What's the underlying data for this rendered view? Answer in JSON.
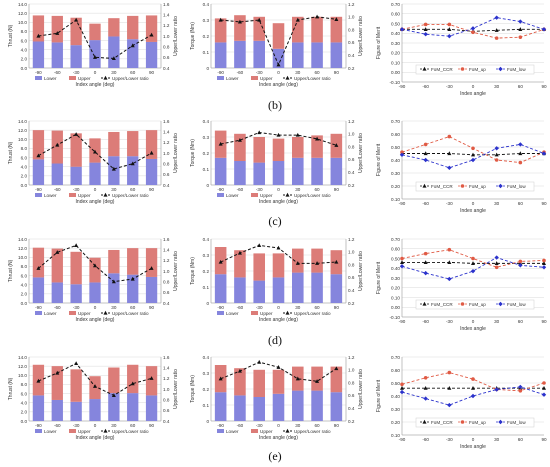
{
  "figure": {
    "row_labels": [
      "(b)",
      "(c)",
      "(d)",
      "(e)"
    ],
    "colors": {
      "lower": "#8585dd",
      "upper": "#dc7c78",
      "ratio": "#111111",
      "fom_ccr": "#111111",
      "fom_up": "#e05a44",
      "fom_low": "#2b32cc",
      "grid": "#d9d9d9",
      "axis": "#9a9a9a"
    }
  },
  "chart_data": [
    {
      "type": "bar",
      "stacked": true,
      "row": "(b)",
      "xlabel": "Index angle (deg)",
      "ylabel": "Thrust (N)",
      "y2label": "Upper/Lower ratio",
      "categories": [
        "-90",
        "-60",
        "-30",
        "0",
        "30",
        "60",
        "90"
      ],
      "ylim": [
        0,
        14
      ],
      "yticks": [
        "0.0",
        "2.0",
        "4.0",
        "6.0",
        "8.0",
        "10.0",
        "12.0",
        "14.0"
      ],
      "y2lim": [
        0.4,
        1.6
      ],
      "y2ticks": [
        "0.4",
        "0.6",
        "0.8",
        "1.0",
        "1.2",
        "1.4",
        "1.6"
      ],
      "series": [
        {
          "name": "Lower",
          "values": [
            5.8,
            5.6,
            5.0,
            6.1,
            6.9,
            6.3,
            5.7
          ]
        },
        {
          "name": "Upper",
          "values": [
            5.7,
            5.8,
            6.0,
            3.6,
            4.0,
            5.1,
            5.8
          ]
        }
      ],
      "line": {
        "name": "Upper/Lower ratio",
        "values": [
          1.0,
          1.05,
          1.3,
          0.6,
          0.58,
          0.82,
          1.02
        ]
      },
      "legend": [
        "Lower",
        "Upper",
        "Upper/Lower ratio"
      ],
      "legend_position": "bottom",
      "grid": true
    },
    {
      "type": "bar",
      "stacked": true,
      "row": "(b)",
      "xlabel": "Index angle (deg)",
      "ylabel": "Torque (Nm)",
      "y2label": "Upper/Lower ratio",
      "categories": [
        "-90",
        "-60",
        "-30",
        "0",
        "30",
        "60",
        "90"
      ],
      "ylim": [
        0,
        0.4
      ],
      "yticks": [
        "0",
        "0.1",
        "0.2",
        "0.3",
        "0.4"
      ],
      "y2lim": [
        0.2,
        1.2
      ],
      "y2ticks": [
        "0.2",
        "0.4",
        "0.6",
        "0.8",
        "1.0",
        "1.2"
      ],
      "series": [
        {
          "name": "Lower",
          "values": [
            0.16,
            0.17,
            0.17,
            0.12,
            0.16,
            0.16,
            0.16
          ]
        },
        {
          "name": "Upper",
          "values": [
            0.15,
            0.16,
            0.15,
            0.16,
            0.16,
            0.16,
            0.16
          ]
        }
      ],
      "line": {
        "name": "Upper/Lower ratio",
        "values": [
          0.95,
          0.92,
          0.95,
          0.25,
          0.95,
          1.0,
          0.96
        ]
      },
      "legend": [
        "Lower",
        "Upper",
        "Upper/Lower ratio"
      ],
      "legend_position": "bottom",
      "grid": true
    },
    {
      "type": "line",
      "row": "(b)",
      "xlabel": "Index angle",
      "ylabel": "Figure of Merit",
      "x": [
        "-90",
        "-60",
        "-30",
        "0",
        "30",
        "60",
        "90"
      ],
      "ylim": [
        -0.1,
        0.7
      ],
      "yticks": [
        "-0.10",
        "0.00",
        "0.10",
        "0.20",
        "0.30",
        "0.40",
        "0.50",
        "0.60",
        "0.70"
      ],
      "series": [
        {
          "name": "FoM_CCR",
          "values": [
            0.44,
            0.44,
            0.44,
            0.42,
            0.43,
            0.44,
            0.44
          ]
        },
        {
          "name": "FoM_up",
          "values": [
            0.44,
            0.49,
            0.49,
            0.41,
            0.35,
            0.36,
            0.44
          ]
        },
        {
          "name": "FoM_low",
          "values": [
            0.44,
            0.39,
            0.37,
            0.45,
            0.56,
            0.52,
            0.44
          ]
        }
      ],
      "legend_position": "bottom",
      "grid": true
    },
    {
      "type": "bar",
      "stacked": true,
      "row": "(c)",
      "xlabel": "Index angle (deg)",
      "ylabel": "Thrust (N)",
      "y2label": "Upper/Lower ratio",
      "categories": [
        "-90",
        "-60",
        "-30",
        "0",
        "30",
        "60",
        "90"
      ],
      "ylim": [
        0,
        14
      ],
      "yticks": [
        "0.0",
        "2.0",
        "4.0",
        "6.0",
        "8.0",
        "10.0",
        "12.0",
        "14.0"
      ],
      "y2lim": [
        0.4,
        1.6
      ],
      "y2ticks": [
        "0.4",
        "0.6",
        "0.8",
        "1.0",
        "1.2",
        "1.4",
        "1.6"
      ],
      "series": [
        {
          "name": "Lower",
          "values": [
            5.6,
            4.7,
            4.0,
            4.9,
            6.3,
            6.3,
            5.7
          ]
        },
        {
          "name": "Upper",
          "values": [
            6.4,
            7.2,
            7.3,
            5.3,
            5.3,
            5.5,
            6.3
          ]
        }
      ],
      "line": {
        "name": "Upper/Lower ratio",
        "values": [
          0.95,
          1.15,
          1.35,
          1.02,
          0.7,
          0.8,
          1.0
        ]
      },
      "legend": [
        "Lower",
        "Upper",
        "Upper/Lower ratio"
      ],
      "legend_position": "bottom",
      "grid": true
    },
    {
      "type": "bar",
      "stacked": true,
      "row": "(c)",
      "xlabel": "Index angle (deg)",
      "ylabel": "Torque (Nm)",
      "y2label": "Upper/Lower ratio",
      "categories": [
        "-90",
        "-60",
        "-30",
        "0",
        "30",
        "60",
        "90"
      ],
      "ylim": [
        0,
        0.4
      ],
      "yticks": [
        "0",
        "0.1",
        "0.2",
        "0.3",
        "0.4"
      ],
      "y2lim": [
        0.2,
        1.2
      ],
      "y2ticks": [
        "0.2",
        "0.4",
        "0.6",
        "0.8",
        "1.0",
        "1.2"
      ],
      "series": [
        {
          "name": "Lower",
          "values": [
            0.17,
            0.15,
            0.14,
            0.15,
            0.17,
            0.17,
            0.17
          ]
        },
        {
          "name": "Upper",
          "values": [
            0.17,
            0.17,
            0.16,
            0.14,
            0.13,
            0.14,
            0.15
          ]
        }
      ],
      "line": {
        "name": "Upper/Lower ratio",
        "values": [
          0.84,
          0.9,
          1.02,
          0.98,
          0.98,
          0.92,
          0.82
        ]
      },
      "legend": [
        "Lower",
        "Upper",
        "Upper/Lower ratio"
      ],
      "legend_position": "bottom",
      "grid": true
    },
    {
      "type": "line",
      "row": "(c)",
      "xlabel": "Index angle",
      "ylabel": "Figure of Merit",
      "x": [
        "-90",
        "-60",
        "-30",
        "0",
        "30",
        "60",
        "90"
      ],
      "ylim": [
        0.1,
        0.7
      ],
      "yticks": [
        "0.10",
        "0.20",
        "0.30",
        "0.40",
        "0.50",
        "0.60",
        "0.70"
      ],
      "series": [
        {
          "name": "FoM_CCR",
          "values": [
            0.45,
            0.45,
            0.45,
            0.44,
            0.44,
            0.45,
            0.45
          ]
        },
        {
          "name": "FoM_up",
          "values": [
            0.46,
            0.52,
            0.58,
            0.49,
            0.4,
            0.38,
            0.46
          ]
        },
        {
          "name": "FoM_low",
          "values": [
            0.44,
            0.4,
            0.34,
            0.4,
            0.49,
            0.52,
            0.45
          ]
        }
      ],
      "legend_position": "bottom",
      "grid": true
    },
    {
      "type": "bar",
      "stacked": true,
      "row": "(d)",
      "xlabel": "Index angle (deg)",
      "ylabel": "Thrust (N)",
      "y2label": "Upper/Lower ratio",
      "categories": [
        "-90",
        "-60",
        "-30",
        "0",
        "30",
        "60",
        "90"
      ],
      "ylim": [
        0,
        14
      ],
      "yticks": [
        "0.0",
        "2.0",
        "4.0",
        "6.0",
        "8.0",
        "10.0",
        "12.0",
        "14.0"
      ],
      "y2lim": [
        0.4,
        1.6
      ],
      "y2ticks": [
        "0.4",
        "0.6",
        "0.8",
        "1.0",
        "1.2",
        "1.4",
        "1.6"
      ],
      "series": [
        {
          "name": "Lower",
          "values": [
            5.6,
            4.5,
            4.1,
            4.5,
            6.5,
            6.2,
            5.7
          ]
        },
        {
          "name": "Upper",
          "values": [
            6.5,
            7.4,
            7.1,
            5.4,
            5.1,
            5.8,
            6.3
          ]
        }
      ],
      "line": {
        "name": "Upper/Lower ratio",
        "values": [
          1.05,
          1.35,
          1.48,
          1.1,
          0.8,
          0.85,
          1.05
        ]
      },
      "legend": [
        "Lower",
        "Upper",
        "Upper/Lower ratio"
      ],
      "legend_position": "bottom",
      "grid": true
    },
    {
      "type": "bar",
      "stacked": true,
      "row": "(d)",
      "xlabel": "Index angle (deg)",
      "ylabel": "Torque (Nm)",
      "y2label": "Upper/Lower ratio",
      "categories": [
        "-90",
        "-60",
        "-30",
        "0",
        "30",
        "60",
        "90"
      ],
      "ylim": [
        0,
        0.4
      ],
      "yticks": [
        "0",
        "0.1",
        "0.2",
        "0.3",
        "0.4"
      ],
      "y2lim": [
        0.2,
        1.2
      ],
      "y2ticks": [
        "0.2",
        "0.4",
        "0.6",
        "0.8",
        "1.0",
        "1.2"
      ],
      "series": [
        {
          "name": "Lower",
          "values": [
            0.18,
            0.16,
            0.14,
            0.16,
            0.19,
            0.19,
            0.18
          ]
        },
        {
          "name": "Upper",
          "values": [
            0.17,
            0.17,
            0.17,
            0.15,
            0.15,
            0.15,
            0.15
          ]
        }
      ],
      "line": {
        "name": "Upper/Lower ratio",
        "values": [
          0.84,
          0.98,
          1.1,
          1.06,
          0.82,
          0.82,
          0.84
        ]
      },
      "legend": [
        "Lower",
        "Upper",
        "Upper/Lower ratio"
      ],
      "legend_position": "bottom",
      "grid": true
    },
    {
      "type": "line",
      "row": "(d)",
      "xlabel": "Index angle",
      "ylabel": "Figure of Merit",
      "x": [
        "-90",
        "-60",
        "-30",
        "0",
        "30",
        "60",
        "90"
      ],
      "ylim": [
        -0.1,
        0.7
      ],
      "yticks": [
        "-0.10",
        "0.00",
        "0.10",
        "0.20",
        "0.30",
        "0.40",
        "0.50",
        "0.60",
        "0.70"
      ],
      "series": [
        {
          "name": "FoM_CCR",
          "values": [
            0.46,
            0.46,
            0.46,
            0.45,
            0.45,
            0.45,
            0.45
          ]
        },
        {
          "name": "FoM_up",
          "values": [
            0.5,
            0.55,
            0.59,
            0.5,
            0.41,
            0.47,
            0.48
          ]
        },
        {
          "name": "FoM_low",
          "values": [
            0.42,
            0.35,
            0.29,
            0.37,
            0.51,
            0.43,
            0.41
          ]
        }
      ],
      "legend_position": "bottom",
      "grid": true
    },
    {
      "type": "bar",
      "stacked": true,
      "row": "(e)",
      "xlabel": "Index angle (deg)",
      "ylabel": "Thrust (N)",
      "y2label": "Upper/Lower ratio",
      "categories": [
        "-90",
        "-60",
        "-30",
        "0",
        "30",
        "60",
        "90"
      ],
      "ylim": [
        0,
        14
      ],
      "yticks": [
        "0.0",
        "2.0",
        "4.0",
        "6.0",
        "8.0",
        "10.0",
        "12.0",
        "14.0"
      ],
      "y2lim": [
        0.4,
        1.6
      ],
      "y2ticks": [
        "0.4",
        "0.6",
        "0.8",
        "1.0",
        "1.2",
        "1.4",
        "1.6"
      ],
      "series": [
        {
          "name": "Lower",
          "values": [
            5.6,
            4.6,
            4.2,
            4.8,
            6.1,
            6.1,
            5.6
          ]
        },
        {
          "name": "Upper",
          "values": [
            6.7,
            7.4,
            7.1,
            5.0,
            5.6,
            6.2,
            6.4
          ]
        }
      ],
      "line": {
        "name": "Upper/Lower ratio",
        "values": [
          1.15,
          1.3,
          1.48,
          1.05,
          0.88,
          1.1,
          1.2
        ]
      },
      "legend": [
        "Lower",
        "Upper",
        "Upper/Lower ratio"
      ],
      "legend_position": "bottom",
      "grid": true
    },
    {
      "type": "bar",
      "stacked": true,
      "row": "(e)",
      "xlabel": "Index angle (deg)",
      "ylabel": "Torque (Nm)",
      "y2label": "Upper/Lower ratio",
      "categories": [
        "-90",
        "-60",
        "-30",
        "0",
        "30",
        "60",
        "90"
      ],
      "ylim": [
        0,
        0.4
      ],
      "yticks": [
        "0",
        "0.1",
        "0.2",
        "0.3",
        "0.4"
      ],
      "y2lim": [
        0.2,
        1.2
      ],
      "y2ticks": [
        "0.2",
        "0.4",
        "0.6",
        "0.8",
        "1.0",
        "1.2"
      ],
      "series": [
        {
          "name": "Lower",
          "values": [
            0.18,
            0.16,
            0.15,
            0.17,
            0.19,
            0.19,
            0.18
          ]
        },
        {
          "name": "Upper",
          "values": [
            0.17,
            0.17,
            0.17,
            0.15,
            0.15,
            0.15,
            0.16
          ]
        }
      ],
      "line": {
        "name": "Upper/Lower ratio",
        "values": [
          0.86,
          0.98,
          1.12,
          1.04,
          0.86,
          0.82,
          1.02
        ]
      },
      "legend": [
        "Lower",
        "Upper",
        "Upper/Lower ratio"
      ],
      "legend_position": "bottom",
      "grid": true
    },
    {
      "type": "line",
      "row": "(e)",
      "xlabel": "Index angle",
      "ylabel": "Figure of Merit",
      "x": [
        "-90",
        "-60",
        "-30",
        "0",
        "30",
        "60",
        "90"
      ],
      "ylim": [
        0.1,
        0.7
      ],
      "yticks": [
        "0.10",
        "0.20",
        "0.30",
        "0.40",
        "0.50",
        "0.60",
        "0.70"
      ],
      "series": [
        {
          "name": "FoM_CCR",
          "values": [
            0.46,
            0.46,
            0.46,
            0.46,
            0.46,
            0.46,
            0.46
          ]
        },
        {
          "name": "FoM_up",
          "values": [
            0.49,
            0.54,
            0.58,
            0.53,
            0.45,
            0.44,
            0.5
          ]
        },
        {
          "name": "FoM_low",
          "values": [
            0.43,
            0.38,
            0.33,
            0.4,
            0.45,
            0.47,
            0.41
          ]
        }
      ],
      "legend_position": "bottom",
      "grid": true
    }
  ]
}
